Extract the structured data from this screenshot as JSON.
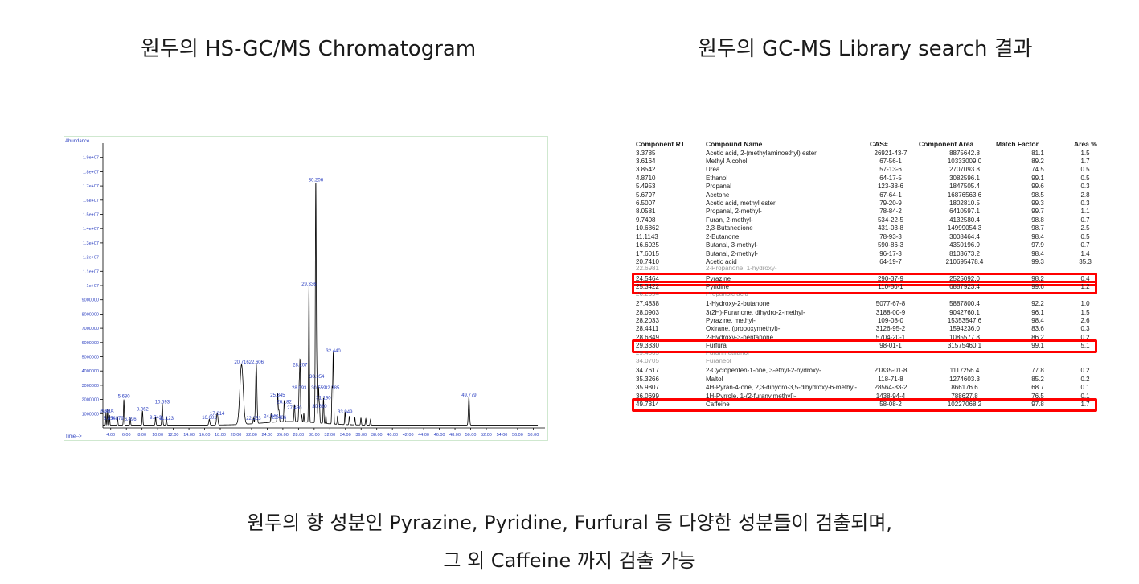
{
  "left_title": "원두의 HS-GC/MS Chromatogram",
  "right_title": "원두의 GC-MS Library search 결과",
  "footer_line1": "원두의 향 성분인 Pyrazine, Pyridine, Furfural 등 다양한 성분들이 검출되며,",
  "footer_line2": "그 외 Caffeine 까지 검출 가능",
  "chart_data": {
    "type": "line",
    "ylabel": "Abundance",
    "xlabel": "Time-->",
    "xlim": [
      3.0,
      59.5
    ],
    "ylim": [
      0,
      20000000
    ],
    "y_ticks": [
      1000000,
      2000000,
      3000000,
      4000000,
      5000000,
      6000000,
      7000000,
      8000000,
      9000000,
      10000000,
      11000000,
      12000000,
      13000000,
      14000000,
      15000000,
      16000000,
      17000000,
      18000000,
      19000000
    ],
    "y_tick_labels": [
      "1000000",
      "2000000",
      "3000000",
      "4000000",
      "5000000",
      "6000000",
      "7000000",
      "8000000",
      "9000000",
      "1e+07",
      "1.1e+07",
      "1.2e+07",
      "1.3e+07",
      "1.4e+07",
      "1.5e+07",
      "1.6e+07",
      "1.7e+07",
      "1.8e+07",
      "1.9e+07"
    ],
    "x_ticks": [
      4,
      6,
      8,
      10,
      12,
      14,
      16,
      18,
      20,
      22,
      24,
      26,
      28,
      30,
      32,
      34,
      36,
      38,
      40,
      42,
      44,
      46,
      48,
      50,
      52,
      54,
      56,
      58
    ],
    "x_tick_labels": [
      "4.00",
      "6.00",
      "8.00",
      "10.00",
      "12.00",
      "14.00",
      "16.00",
      "18.00",
      "20.00",
      "22.00",
      "24.00",
      "26.00",
      "28.00",
      "30.00",
      "32.00",
      "34.00",
      "36.00",
      "38.00",
      "40.00",
      "42.00",
      "44.00",
      "46.00",
      "48.00",
      "50.00",
      "52.00",
      "54.00",
      "56.00",
      "58.00"
    ],
    "baseline": 200000,
    "peaks": [
      {
        "x": 3.4,
        "y": 900000,
        "w": 0.05
      },
      {
        "x": 3.6,
        "y": 1100000,
        "w": 0.05
      },
      {
        "x": 3.85,
        "y": 700000,
        "w": 0.05
      },
      {
        "x": 4.87,
        "y": 600000,
        "w": 0.06
      },
      {
        "x": 5.68,
        "y": 1800000,
        "w": 0.07
      },
      {
        "x": 6.5,
        "y": 500000,
        "w": 0.06
      },
      {
        "x": 8.06,
        "y": 1000000,
        "w": 0.07
      },
      {
        "x": 9.74,
        "y": 550000,
        "w": 0.07
      },
      {
        "x": 10.59,
        "y": 1500000,
        "w": 0.08
      },
      {
        "x": 11.12,
        "y": 500000,
        "w": 0.07
      },
      {
        "x": 16.6,
        "y": 400000,
        "w": 0.1
      },
      {
        "x": 17.61,
        "y": 850000,
        "w": 0.12
      },
      {
        "x": 20.72,
        "y": 4200000,
        "w": 0.3
      },
      {
        "x": 22.6,
        "y": 4200000,
        "w": 0.12
      },
      {
        "x": 22.25,
        "y": 400000,
        "w": 0.08
      },
      {
        "x": 24.5,
        "y": 600000,
        "w": 0.08
      },
      {
        "x": 25.34,
        "y": 2000000,
        "w": 0.08
      },
      {
        "x": 25.5,
        "y": 800000,
        "w": 0.08
      },
      {
        "x": 26.18,
        "y": 1500000,
        "w": 0.08
      },
      {
        "x": 27.48,
        "y": 1200000,
        "w": 0.08
      },
      {
        "x": 28.09,
        "y": 2500000,
        "w": 0.08
      },
      {
        "x": 28.2,
        "y": 4000000,
        "w": 0.07
      },
      {
        "x": 28.41,
        "y": 500000,
        "w": 0.06
      },
      {
        "x": 28.68,
        "y": 600000,
        "w": 0.06
      },
      {
        "x": 29.34,
        "y": 9700000,
        "w": 0.07
      },
      {
        "x": 30.21,
        "y": 17000000,
        "w": 0.08
      },
      {
        "x": 30.35,
        "y": 3200000,
        "w": 0.07
      },
      {
        "x": 30.56,
        "y": 2500000,
        "w": 0.07
      },
      {
        "x": 30.68,
        "y": 1200000,
        "w": 0.07
      },
      {
        "x": 31.19,
        "y": 1800000,
        "w": 0.07
      },
      {
        "x": 31.5,
        "y": 600000,
        "w": 0.06
      },
      {
        "x": 32.29,
        "y": 2500000,
        "w": 0.07
      },
      {
        "x": 32.44,
        "y": 5000000,
        "w": 0.08
      },
      {
        "x": 33.0,
        "y": 600000,
        "w": 0.07
      },
      {
        "x": 33.95,
        "y": 900000,
        "w": 0.07
      },
      {
        "x": 34.5,
        "y": 600000,
        "w": 0.07
      },
      {
        "x": 35.2,
        "y": 500000,
        "w": 0.07
      },
      {
        "x": 35.98,
        "y": 500000,
        "w": 0.07
      },
      {
        "x": 36.6,
        "y": 450000,
        "w": 0.07
      },
      {
        "x": 37.2,
        "y": 400000,
        "w": 0.07
      },
      {
        "x": 49.78,
        "y": 2000000,
        "w": 0.1
      }
    ],
    "peak_labels": [
      {
        "x": 3.4,
        "y": 1000000,
        "text": "3.380"
      },
      {
        "x": 3.62,
        "y": 900000,
        "text": "3.615"
      },
      {
        "x": 3.85,
        "y": 450000,
        "text": "3.854"
      },
      {
        "x": 4.87,
        "y": 450000,
        "text": "4.879"
      },
      {
        "x": 6.5,
        "y": 400000,
        "text": "6.496"
      },
      {
        "x": 5.68,
        "y": 2000000,
        "text": "5.680"
      },
      {
        "x": 8.06,
        "y": 1100000,
        "text": "8.062"
      },
      {
        "x": 9.74,
        "y": 500000,
        "text": "9.743"
      },
      {
        "x": 10.59,
        "y": 1600000,
        "text": "10.593"
      },
      {
        "x": 11.12,
        "y": 450000,
        "text": "11.123"
      },
      {
        "x": 16.6,
        "y": 500000,
        "text": "16.601"
      },
      {
        "x": 17.61,
        "y": 800000,
        "text": "17.614"
      },
      {
        "x": 20.72,
        "y": 4400000,
        "text": "20.716"
      },
      {
        "x": 22.6,
        "y": 4400000,
        "text": "22.606"
      },
      {
        "x": 22.25,
        "y": 450000,
        "text": "22.253"
      },
      {
        "x": 24.5,
        "y": 600000,
        "text": "24.546"
      },
      {
        "x": 25.34,
        "y": 2100000,
        "text": "25.345"
      },
      {
        "x": 25.5,
        "y": 500000,
        "text": "25.486"
      },
      {
        "x": 26.18,
        "y": 1600000,
        "text": "26.182"
      },
      {
        "x": 27.48,
        "y": 1200000,
        "text": "27.480"
      },
      {
        "x": 28.09,
        "y": 2600000,
        "text": "28.093"
      },
      {
        "x": 28.2,
        "y": 4200000,
        "text": "28.207"
      },
      {
        "x": 29.34,
        "y": 9900000,
        "text": "29.336"
      },
      {
        "x": 30.21,
        "y": 17200000,
        "text": "30.206"
      },
      {
        "x": 30.35,
        "y": 3400000,
        "text": "30.354"
      },
      {
        "x": 30.56,
        "y": 2600000,
        "text": "30.559"
      },
      {
        "x": 30.68,
        "y": 1300000,
        "text": "30.680"
      },
      {
        "x": 31.19,
        "y": 1900000,
        "text": "31.190"
      },
      {
        "x": 32.29,
        "y": 2600000,
        "text": "32.285"
      },
      {
        "x": 32.44,
        "y": 5200000,
        "text": "32.440"
      },
      {
        "x": 33.95,
        "y": 900000,
        "text": "33.949"
      },
      {
        "x": 49.78,
        "y": 2100000,
        "text": "49.779"
      }
    ]
  },
  "table": {
    "headers": [
      "Component RT",
      "Compound Name",
      "CAS#",
      "Component Area",
      "Match Factor",
      "Area %"
    ],
    "rows": [
      [
        "3.3785",
        "Acetic acid, 2-(methylaminoethyl) ester",
        "26921-43-7",
        "8875642.8",
        "81.1",
        "1.5"
      ],
      [
        "3.6164",
        "Methyl Alcohol",
        "67-56-1",
        "10333009.0",
        "89.2",
        "1.7"
      ],
      [
        "3.8542",
        "Urea",
        "57-13-6",
        "2707093.8",
        "74.5",
        "0.5"
      ],
      [
        "4.8710",
        "Ethanol",
        "64-17-5",
        "3082596.1",
        "99.1",
        "0.5"
      ],
      [
        "5.4953",
        "Propanal",
        "123-38-6",
        "1847505.4",
        "99.6",
        "0.3"
      ],
      [
        "5.6797",
        "Acetone",
        "67-64-1",
        "16876563.6",
        "98.5",
        "2.8"
      ],
      [
        "6.5007",
        "Acetic acid, methyl ester",
        "79-20-9",
        "1802810.5",
        "99.3",
        "0.3"
      ],
      [
        "8.0581",
        "Propanal, 2-methyl-",
        "78-84-2",
        "6410597.1",
        "99.7",
        "1.1"
      ],
      [
        "9.7408",
        "Furan, 2-methyl-",
        "534-22-5",
        "4132580.4",
        "98.8",
        "0.7"
      ],
      [
        "10.6862",
        "2,3-Butanedione",
        "431-03-8",
        "14999054.3",
        "98.7",
        "2.5"
      ],
      [
        "11.1143",
        "2-Butanone",
        "78-93-3",
        "3008464.4",
        "98.4",
        "0.5"
      ],
      [
        "16.6025",
        "Butanal, 3-methyl-",
        "590-86-3",
        "4350196.9",
        "97.9",
        "0.7"
      ],
      [
        "17.6015",
        "Butanal, 2-methyl-",
        "96-17-3",
        "8103673.2",
        "98.4",
        "1.4"
      ],
      [
        "20.7410",
        "Acetic acid",
        "64-19-7",
        "210695478.4",
        "99.3",
        "35.3"
      ],
      [
        "24.5464",
        "Pyrazine",
        "290-37-9",
        "2525092.0",
        "98.2",
        "0.4"
      ],
      [
        "25.3422",
        "Pyridine",
        "110-86-1",
        "6887923.4",
        "99.6",
        "1.2"
      ],
      [
        "27.4838",
        "1-Hydroxy-2-butanone",
        "5077-67-8",
        "5887800.4",
        "92.2",
        "1.0"
      ],
      [
        "28.0903",
        "3(2H)-Furanone, dihydro-2-methyl-",
        "3188-00-9",
        "9042760.1",
        "96.1",
        "1.5"
      ],
      [
        "28.2033",
        "Pyrazine, methyl-",
        "109-08-0",
        "15353547.6",
        "98.4",
        "2.6"
      ],
      [
        "28.4411",
        "Oxirane, (propoxymethyl)-",
        "3126-95-2",
        "1594236.0",
        "83.6",
        "0.3"
      ],
      [
        "28.6849",
        "2-Hydroxy-3-pentanone",
        "5704-20-1",
        "1085577.8",
        "86.2",
        "0.2"
      ],
      [
        "29.3330",
        "Furfural",
        "98-01-1",
        "31575460.1",
        "99.1",
        "5.1"
      ],
      [
        "34.7617",
        "2-Cyclopenten-1-one, 3-ethyl-2-hydroxy-",
        "21835-01-8",
        "1117256.4",
        "77.8",
        "0.2"
      ],
      [
        "35.3266",
        "Maltol",
        "118-71-8",
        "1274603.3",
        "85.2",
        "0.2"
      ],
      [
        "35.9807",
        "4H-Pyran-4-one, 2,3-dihydro-3,5-dihydroxy-6-methyl-",
        "28564-83-2",
        "866176.6",
        "68.7",
        "0.1"
      ],
      [
        "36.0699",
        "1H-Pyrrole, 1-(2-furanylmethyl)-",
        "1438-94-4",
        "788627.8",
        "76.5",
        "0.1"
      ],
      [
        "49.7814",
        "Caffeine",
        "58-08-2",
        "10227068.2",
        "97.8",
        "1.7"
      ]
    ],
    "partial_rows": [
      [
        "22.6981",
        "2-Propanone, 1-hydroxy-"
      ],
      [
        "26.2694",
        "Propanoic acid"
      ],
      [
        "29.4565",
        "Furanmethanol"
      ],
      [
        "34.0705",
        "Furaneol"
      ]
    ]
  }
}
